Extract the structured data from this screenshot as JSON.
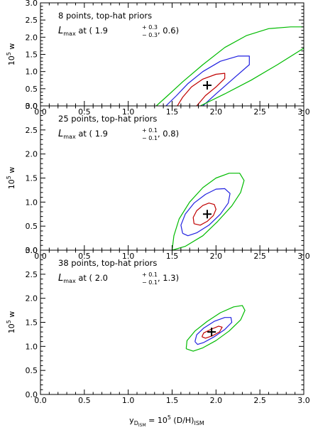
{
  "colors": {
    "red": "#c00000",
    "blue": "#2020e0",
    "green": "#00bb00",
    "axis": "#000000"
  },
  "figure": {
    "xlabel_main": "y",
    "xlabel_sub": "D",
    "xlabel_subsub": "ISM",
    "xlabel_eq": " = 10",
    "xlabel_exp": "5",
    "xlabel_tail": " (D/H)",
    "xlabel_tailsub": "ISM",
    "ylabel_base": "10",
    "ylabel_exp": "5",
    "ylabel_var": " w"
  },
  "chart_data": [
    {
      "type": "contour",
      "annotation": "8 points, top-hat priors",
      "lmax": {
        "L": "L",
        "sub": "max",
        "at": " at ( 1.9",
        "sup": "+ 0.3",
        "sub2": "− 0.3",
        "rest": ", 0.6)"
      },
      "xlim": [
        0,
        3
      ],
      "ylim": [
        0,
        3
      ],
      "xticks": [
        "0.0",
        "0.5",
        "1.0",
        "1.5",
        "2.0",
        "2.5",
        "3.0"
      ],
      "yticks": [
        "0.0",
        "0.5",
        "1.0",
        "1.5",
        "2.0",
        "2.5",
        "3.0"
      ],
      "marker": [
        1.9,
        0.6
      ],
      "contours": [
        {
          "level": "red",
          "points": [
            [
              1.56,
              0.0
            ],
            [
              1.62,
              0.25
            ],
            [
              1.72,
              0.55
            ],
            [
              1.85,
              0.78
            ],
            [
              2.0,
              0.92
            ],
            [
              2.1,
              0.95
            ],
            [
              2.1,
              0.8
            ],
            [
              2.0,
              0.55
            ],
            [
              1.88,
              0.3
            ],
            [
              1.78,
              0.0
            ]
          ]
        },
        {
          "level": "blue",
          "points": [
            [
              1.43,
              0.0
            ],
            [
              1.55,
              0.3
            ],
            [
              1.68,
              0.65
            ],
            [
              1.85,
              1.0
            ],
            [
              2.05,
              1.3
            ],
            [
              2.25,
              1.45
            ],
            [
              2.38,
              1.45
            ],
            [
              2.38,
              1.2
            ],
            [
              2.2,
              0.8
            ],
            [
              2.0,
              0.35
            ],
            [
              1.85,
              0.0
            ]
          ]
        },
        {
          "level": "green",
          "points": [
            [
              1.32,
              0.0
            ],
            [
              1.45,
              0.3
            ],
            [
              1.62,
              0.7
            ],
            [
              1.85,
              1.2
            ],
            [
              2.1,
              1.7
            ],
            [
              2.35,
              2.05
            ],
            [
              2.6,
              2.25
            ],
            [
              2.85,
              2.3
            ],
            [
              3.0,
              2.3
            ]
          ]
        },
        {
          "level": "green",
          "points": [
            [
              1.82,
              0.0
            ],
            [
              2.1,
              0.35
            ],
            [
              2.4,
              0.75
            ],
            [
              2.7,
              1.2
            ],
            [
              3.0,
              1.68
            ]
          ]
        }
      ]
    },
    {
      "type": "contour",
      "annotation": "25 points, top-hat priors",
      "lmax": {
        "L": "L",
        "sub": "max",
        "at": " at ( 1.9",
        "sup": "+ 0.1",
        "sub2": "− 0.1",
        "rest": ", 0.8)"
      },
      "xlim": [
        0,
        3
      ],
      "ylim": [
        0,
        3
      ],
      "xticks": [
        "0.0",
        "0.5",
        "1.0",
        "1.5",
        "2.0",
        "2.5",
        "3.0"
      ],
      "yticks": [
        "0.0",
        "0.5",
        "1.0",
        "1.5",
        "2.0",
        "2.5",
        "3.0"
      ],
      "marker": [
        1.9,
        0.75
      ],
      "contours": [
        {
          "level": "red",
          "points": [
            [
              1.75,
              0.55
            ],
            [
              1.74,
              0.68
            ],
            [
              1.78,
              0.82
            ],
            [
              1.85,
              0.93
            ],
            [
              1.92,
              0.98
            ],
            [
              1.98,
              0.95
            ],
            [
              2.0,
              0.85
            ],
            [
              1.97,
              0.72
            ],
            [
              1.9,
              0.6
            ],
            [
              1.82,
              0.52
            ],
            [
              1.75,
              0.55
            ]
          ]
        },
        {
          "level": "blue",
          "points": [
            [
              1.62,
              0.35
            ],
            [
              1.6,
              0.52
            ],
            [
              1.65,
              0.75
            ],
            [
              1.75,
              0.98
            ],
            [
              1.88,
              1.16
            ],
            [
              2.0,
              1.27
            ],
            [
              2.1,
              1.28
            ],
            [
              2.16,
              1.18
            ],
            [
              2.14,
              0.98
            ],
            [
              2.05,
              0.75
            ],
            [
              1.92,
              0.52
            ],
            [
              1.78,
              0.36
            ],
            [
              1.68,
              0.3
            ],
            [
              1.62,
              0.35
            ]
          ]
        },
        {
          "level": "green",
          "points": [
            [
              1.5,
              0.0
            ],
            [
              1.52,
              0.3
            ],
            [
              1.58,
              0.65
            ],
            [
              1.7,
              1.0
            ],
            [
              1.85,
              1.3
            ],
            [
              2.0,
              1.5
            ],
            [
              2.15,
              1.6
            ],
            [
              2.27,
              1.6
            ],
            [
              2.32,
              1.45
            ],
            [
              2.28,
              1.2
            ],
            [
              2.18,
              0.92
            ],
            [
              2.02,
              0.6
            ],
            [
              1.85,
              0.3
            ],
            [
              1.65,
              0.08
            ],
            [
              1.5,
              0.0
            ]
          ]
        }
      ]
    },
    {
      "type": "contour",
      "annotation": "38 points, top-hat priors",
      "lmax": {
        "L": "L",
        "sub": "max",
        "at": " at ( 2.0",
        "sup": "+ 0.1",
        "sub2": "− 0.1",
        "rest": ", 1.3)"
      },
      "xlim": [
        0,
        3
      ],
      "ylim": [
        0,
        3
      ],
      "xticks": [
        "0.0",
        "0.5",
        "1.0",
        "1.5",
        "2.0",
        "2.5",
        "3.0"
      ],
      "yticks": [
        "0.0",
        "0.5",
        "1.0",
        "1.5",
        "2.0",
        "2.5",
        "3.0"
      ],
      "marker": [
        1.95,
        1.3
      ],
      "contours": [
        {
          "level": "red",
          "points": [
            [
              1.84,
              1.2
            ],
            [
              1.86,
              1.28
            ],
            [
              1.95,
              1.36
            ],
            [
              2.03,
              1.42
            ],
            [
              2.07,
              1.4
            ],
            [
              2.04,
              1.3
            ],
            [
              1.96,
              1.22
            ],
            [
              1.88,
              1.17
            ],
            [
              1.84,
              1.2
            ]
          ]
        },
        {
          "level": "blue",
          "points": [
            [
              1.76,
              1.1
            ],
            [
              1.78,
              1.24
            ],
            [
              1.86,
              1.38
            ],
            [
              1.98,
              1.52
            ],
            [
              2.1,
              1.6
            ],
            [
              2.17,
              1.6
            ],
            [
              2.18,
              1.5
            ],
            [
              2.1,
              1.35
            ],
            [
              1.98,
              1.2
            ],
            [
              1.86,
              1.08
            ],
            [
              1.79,
              1.04
            ],
            [
              1.76,
              1.1
            ]
          ]
        },
        {
          "level": "green",
          "points": [
            [
              1.66,
              0.95
            ],
            [
              1.67,
              1.12
            ],
            [
              1.76,
              1.32
            ],
            [
              1.9,
              1.52
            ],
            [
              2.05,
              1.7
            ],
            [
              2.2,
              1.82
            ],
            [
              2.3,
              1.85
            ],
            [
              2.33,
              1.75
            ],
            [
              2.28,
              1.55
            ],
            [
              2.15,
              1.32
            ],
            [
              2.0,
              1.12
            ],
            [
              1.85,
              0.97
            ],
            [
              1.74,
              0.9
            ],
            [
              1.66,
              0.95
            ]
          ]
        }
      ]
    }
  ]
}
